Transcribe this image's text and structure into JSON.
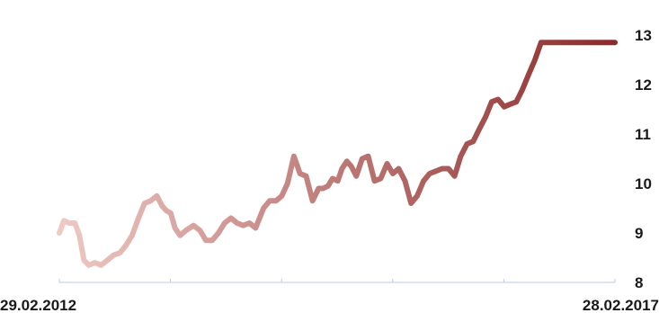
{
  "chart_data": {
    "type": "line",
    "title": "",
    "xlabel": "",
    "ylabel": "",
    "x_start_label": "29.02.2012",
    "x_end_label": "28.02.2017",
    "y_ticks": [
      "8",
      "9",
      "10",
      "11",
      "12",
      "13"
    ],
    "ylim": [
      8,
      13
    ],
    "grid": false,
    "legend": "none",
    "colors": {
      "start": "#efc9c4",
      "end": "#8b2a2a",
      "axis": "#b9cde2",
      "text": "#1a1a1a"
    },
    "series": [
      {
        "x": [
          "2012-02-29",
          "2012-03-15",
          "2012-04-01",
          "2012-04-20",
          "2012-05-05",
          "2012-05-20",
          "2012-06-05",
          "2012-06-25",
          "2012-07-15",
          "2012-08-05",
          "2012-08-25",
          "2012-09-15",
          "2012-10-05",
          "2012-10-25",
          "2012-11-15",
          "2012-12-05",
          "2012-12-25",
          "2013-01-15",
          "2013-01-31",
          "2013-02-15",
          "2013-03-01",
          "2013-03-15",
          "2013-04-01",
          "2013-04-20",
          "2013-05-15",
          "2013-06-05",
          "2013-06-25",
          "2013-07-15",
          "2013-08-05",
          "2013-08-25",
          "2013-09-15",
          "2013-10-05",
          "2013-10-25",
          "2013-11-15",
          "2013-12-05",
          "2013-12-31",
          "2014-01-20",
          "2014-02-10",
          "2014-03-01",
          "2014-03-20",
          "2014-04-10",
          "2014-04-30",
          "2014-05-20",
          "2014-06-10",
          "2014-06-30",
          "2014-07-15",
          "2014-07-31",
          "2014-08-15",
          "2014-09-01",
          "2014-09-15",
          "2014-10-01",
          "2014-10-15",
          "2014-11-01",
          "2014-11-20",
          "2014-12-10",
          "2014-12-31",
          "2015-01-20",
          "2015-02-10",
          "2015-03-01",
          "2015-03-20",
          "2015-04-10",
          "2015-04-30",
          "2015-05-20",
          "2015-06-10",
          "2015-06-30",
          "2015-07-20",
          "2015-08-10",
          "2015-08-31",
          "2015-09-20",
          "2015-10-10",
          "2015-10-31",
          "2015-11-20",
          "2015-12-10",
          "2015-12-31",
          "2016-01-20",
          "2016-02-10",
          "2016-03-01",
          "2016-03-20",
          "2016-04-10",
          "2016-04-30",
          "2016-05-20",
          "2016-06-10",
          "2016-06-30",
          "2016-07-20",
          "2016-08-10",
          "2016-08-31",
          "2016-09-20",
          "2016-10-10",
          "2016-10-31",
          "2016-11-20",
          "2016-12-10",
          "2016-12-31",
          "2017-01-20",
          "2017-02-10",
          "2017-02-28"
        ],
        "values": [
          9.0,
          9.25,
          9.2,
          9.2,
          8.95,
          8.45,
          8.35,
          8.4,
          8.35,
          8.45,
          8.55,
          8.6,
          8.75,
          8.95,
          9.3,
          9.6,
          9.65,
          9.75,
          9.55,
          9.45,
          9.4,
          9.1,
          8.95,
          9.05,
          9.15,
          9.05,
          8.85,
          8.85,
          9.0,
          9.2,
          9.3,
          9.2,
          9.15,
          9.2,
          9.1,
          9.5,
          9.65,
          9.65,
          9.75,
          10.0,
          10.55,
          10.2,
          10.15,
          9.65,
          9.9,
          9.9,
          9.95,
          10.1,
          10.05,
          10.3,
          10.45,
          10.35,
          10.15,
          10.5,
          10.55,
          10.05,
          10.1,
          10.4,
          10.2,
          10.3,
          10.05,
          9.6,
          9.75,
          10.05,
          10.2,
          10.25,
          10.3,
          10.3,
          10.15,
          10.55,
          10.8,
          10.85,
          11.1,
          11.35,
          11.65,
          11.7,
          11.55,
          11.6,
          11.65,
          11.9,
          12.2,
          12.5,
          12.85,
          12.85,
          12.85,
          12.85,
          12.85,
          12.85,
          12.85,
          12.85,
          12.85,
          12.85,
          12.85,
          12.85,
          12.85
        ]
      }
    ]
  }
}
